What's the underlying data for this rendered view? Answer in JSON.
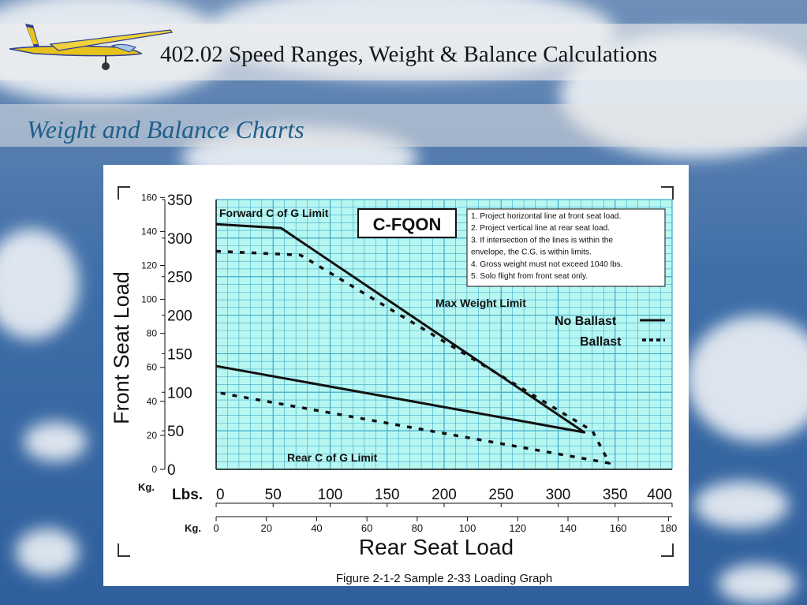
{
  "header": {
    "title": "402.02 Speed Ranges, Weight & Balance Calculations",
    "subtitle": "Weight and Balance Charts"
  },
  "colors": {
    "plot_bg": "#b7f7f2",
    "grid": "#3fa9c7",
    "subtitle": "#1e5f8a"
  },
  "chart_data": {
    "type": "line",
    "caption": "Figure 2-1-2 Sample 2-33 Loading Graph",
    "xlabel": "Rear Seat Load",
    "ylabel": "Front Seat Load",
    "x_unit_label": "Lbs.",
    "x_kg_label": "Kg.",
    "y_kg_label": "Kg.",
    "xlim": [
      0,
      400
    ],
    "ylim": [
      0,
      350
    ],
    "x_ticks": [
      0,
      50,
      100,
      150,
      200,
      250,
      300,
      350,
      400
    ],
    "x_kg_ticks": [
      0,
      20,
      40,
      60,
      80,
      100,
      120,
      140,
      160,
      180
    ],
    "y_ticks": [
      0,
      50,
      100,
      150,
      200,
      250,
      300,
      350
    ],
    "y_kg_ticks": [
      0,
      20,
      40,
      60,
      80,
      100,
      120,
      140,
      160
    ],
    "grid": true,
    "aircraft_id": "C-FQON",
    "notes": [
      "1.  Project horizontal line at front seat load.",
      "2.  Project vertical line at rear seat load.",
      "3.  If intersection of the lines is within the",
      "     envelope, the C.G. is within limits.",
      "4.  Gross weight must not exceed 1040 lbs.",
      "5.  Solo flight from front seat only."
    ],
    "annotations": {
      "forward": "Forward C of G Limit",
      "max_weight": "Max Weight Limit",
      "rear": "Rear C of G Limit"
    },
    "series": [
      {
        "name": "No Ballast",
        "style": "solid",
        "x": [
          0,
          57,
          323,
          0
        ],
        "y": [
          318,
          313,
          48,
          134
        ]
      },
      {
        "name": "Ballast",
        "style": "dotted",
        "x": [
          0,
          74,
          330,
          345,
          0
        ],
        "y": [
          283,
          278,
          50,
          8,
          100
        ]
      }
    ]
  }
}
